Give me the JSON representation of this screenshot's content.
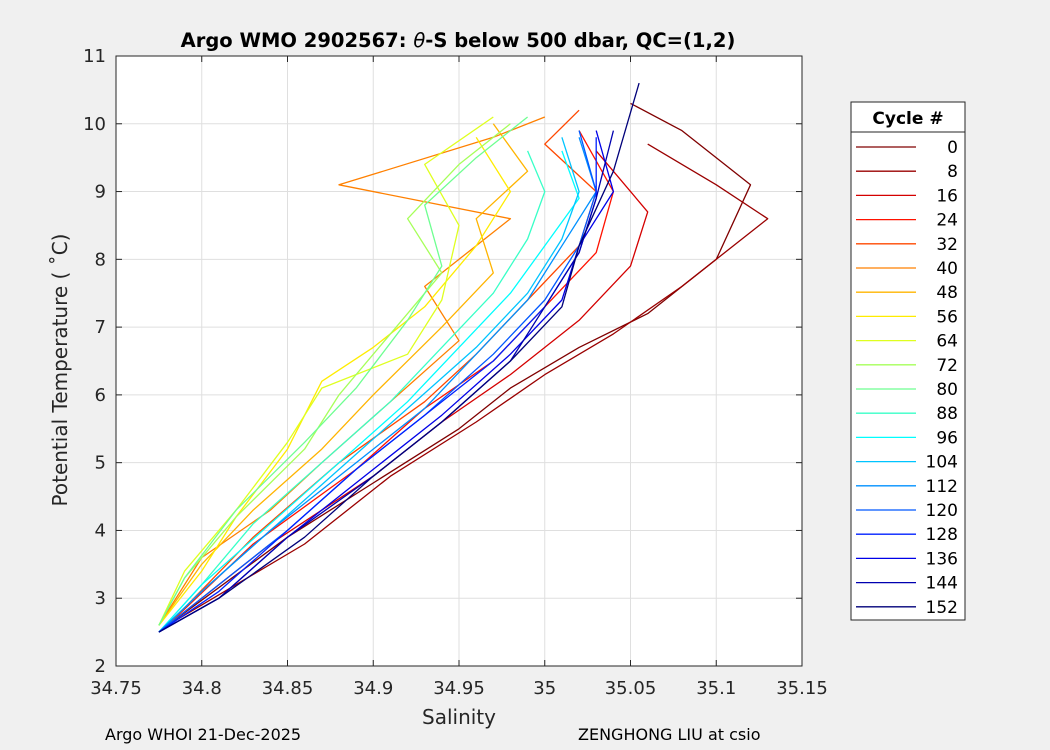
{
  "chart_data": {
    "type": "line",
    "title_prefix": "Argo WMO 2902567: ",
    "title_symbol": "θ",
    "title_suffix": "-S below 500 dbar,  QC=(1,2)",
    "xlabel": "Salinity",
    "ylabel": "Potential Temperature ( ˚C)",
    "xlim": [
      34.75,
      35.15
    ],
    "ylim": [
      2,
      11
    ],
    "xticks": [
      "34.75",
      "34.8",
      "34.85",
      "34.9",
      "34.95",
      "35",
      "35.05",
      "35.1",
      "35.15"
    ],
    "yticks": [
      "2",
      "3",
      "4",
      "5",
      "6",
      "7",
      "8",
      "9",
      "10",
      "11"
    ],
    "grid": true,
    "legend_title": "Cycle #",
    "legend_position": "right",
    "series": [
      {
        "name": "0",
        "color": "#800000"
      },
      {
        "name": "8",
        "color": "#9a0000"
      },
      {
        "name": "16",
        "color": "#d40000"
      },
      {
        "name": "24",
        "color": "#ff1200"
      },
      {
        "name": "32",
        "color": "#ff4800"
      },
      {
        "name": "40",
        "color": "#ff8000"
      },
      {
        "name": "48",
        "color": "#ffb400"
      },
      {
        "name": "56",
        "color": "#ffec00"
      },
      {
        "name": "64",
        "color": "#dfff1f"
      },
      {
        "name": "72",
        "color": "#a6ff59"
      },
      {
        "name": "80",
        "color": "#6eff91"
      },
      {
        "name": "88",
        "color": "#38ffc7"
      },
      {
        "name": "96",
        "color": "#00feff"
      },
      {
        "name": "104",
        "color": "#00c4ff"
      },
      {
        "name": "112",
        "color": "#0090ff"
      },
      {
        "name": "120",
        "color": "#0058ff"
      },
      {
        "name": "128",
        "color": "#0020ff"
      },
      {
        "name": "136",
        "color": "#0000e8"
      },
      {
        "name": "144",
        "color": "#0000b0"
      },
      {
        "name": "152",
        "color": "#00007a"
      }
    ],
    "profiles": [
      {
        "cycle": "0",
        "s": [
          34.78,
          34.85,
          34.9,
          34.95,
          34.98,
          35.02,
          35.06,
          35.1,
          35.12,
          35.08,
          35.05
        ],
        "t": [
          2.6,
          3.9,
          4.7,
          5.5,
          6.1,
          6.7,
          7.2,
          8.0,
          9.1,
          9.9,
          10.3
        ]
      },
      {
        "cycle": "8",
        "s": [
          34.78,
          34.86,
          34.91,
          34.96,
          35.0,
          35.04,
          35.08,
          35.13,
          35.1,
          35.06
        ],
        "t": [
          2.6,
          3.8,
          4.8,
          5.6,
          6.3,
          6.9,
          7.6,
          8.6,
          9.1,
          9.7
        ]
      },
      {
        "cycle": "16",
        "s": [
          34.78,
          34.84,
          34.9,
          34.94,
          34.98,
          35.02,
          35.05,
          35.06,
          35.03
        ],
        "t": [
          2.6,
          3.8,
          4.8,
          5.6,
          6.3,
          7.1,
          7.9,
          8.7,
          9.6
        ]
      },
      {
        "cycle": "24",
        "s": [
          34.78,
          34.83,
          34.89,
          34.93,
          34.97,
          35.0,
          35.03,
          35.04,
          35.02
        ],
        "t": [
          2.6,
          3.8,
          4.9,
          5.8,
          6.5,
          7.3,
          8.1,
          9.0,
          9.9
        ]
      },
      {
        "cycle": "32",
        "s": [
          34.78,
          34.83,
          34.88,
          34.93,
          34.96,
          34.99,
          35.02,
          35.03,
          35.0,
          35.02
        ],
        "t": [
          2.6,
          3.9,
          5.0,
          5.9,
          6.6,
          7.4,
          8.2,
          9.0,
          9.7,
          10.2
        ]
      },
      {
        "cycle": "40",
        "s": [
          34.775,
          34.8,
          34.84,
          34.87,
          34.91,
          34.95,
          34.93,
          34.98,
          34.88,
          34.97,
          35.0
        ],
        "t": [
          2.6,
          3.6,
          4.3,
          5.0,
          5.9,
          6.8,
          7.6,
          8.6,
          9.1,
          9.8,
          10.1
        ]
      },
      {
        "cycle": "48",
        "s": [
          34.775,
          34.8,
          34.83,
          34.87,
          34.9,
          34.94,
          34.97,
          34.96,
          34.99,
          34.97
        ],
        "t": [
          2.6,
          3.5,
          4.3,
          5.2,
          6.0,
          7.0,
          7.8,
          8.6,
          9.3,
          10.0
        ]
      },
      {
        "cycle": "56",
        "s": [
          34.775,
          34.8,
          34.82,
          34.85,
          34.87,
          34.9,
          34.93,
          34.96,
          34.98,
          34.96
        ],
        "t": [
          2.6,
          3.4,
          4.2,
          5.2,
          6.2,
          6.7,
          7.3,
          8.2,
          9.0,
          9.8
        ]
      },
      {
        "cycle": "64",
        "s": [
          34.775,
          34.79,
          34.82,
          34.85,
          34.87,
          34.92,
          34.94,
          34.95,
          34.93,
          34.97
        ],
        "t": [
          2.6,
          3.4,
          4.3,
          5.3,
          6.1,
          6.6,
          7.4,
          8.5,
          9.4,
          10.1
        ]
      },
      {
        "cycle": "72",
        "s": [
          34.775,
          34.79,
          34.82,
          34.86,
          34.88,
          34.91,
          34.94,
          34.92,
          34.95,
          34.98
        ],
        "t": [
          2.6,
          3.3,
          4.2,
          5.2,
          6.0,
          6.9,
          7.8,
          8.6,
          9.4,
          10.0
        ]
      },
      {
        "cycle": "80",
        "s": [
          34.775,
          34.79,
          34.82,
          34.86,
          34.89,
          34.92,
          34.94,
          34.93,
          34.96,
          34.99
        ],
        "t": [
          2.6,
          3.3,
          4.3,
          5.3,
          6.1,
          7.1,
          7.9,
          8.8,
          9.5,
          10.1
        ]
      },
      {
        "cycle": "88",
        "s": [
          34.775,
          34.8,
          34.83,
          34.87,
          34.91,
          34.94,
          34.97,
          34.99,
          35.0,
          34.99
        ],
        "t": [
          2.5,
          3.2,
          4.1,
          5.0,
          5.9,
          6.7,
          7.5,
          8.3,
          9.0,
          9.6
        ]
      },
      {
        "cycle": "96",
        "s": [
          34.775,
          34.8,
          34.84,
          34.88,
          34.92,
          34.95,
          34.98,
          35.0,
          35.02,
          35.01
        ],
        "t": [
          2.5,
          3.2,
          4.1,
          5.0,
          5.9,
          6.7,
          7.5,
          8.2,
          8.9,
          9.6
        ]
      },
      {
        "cycle": "104",
        "s": [
          34.775,
          34.8,
          34.84,
          34.88,
          34.92,
          34.96,
          34.99,
          35.01,
          35.02,
          35.01
        ],
        "t": [
          2.5,
          3.1,
          4.0,
          4.9,
          5.8,
          6.7,
          7.5,
          8.3,
          9.0,
          9.8
        ]
      },
      {
        "cycle": "112",
        "s": [
          34.775,
          34.8,
          34.84,
          34.89,
          34.93,
          34.96,
          34.99,
          35.01,
          35.03,
          35.02
        ],
        "t": [
          2.5,
          3.1,
          4.0,
          5.0,
          5.8,
          6.6,
          7.4,
          8.2,
          9.0,
          9.8
        ]
      },
      {
        "cycle": "120",
        "s": [
          34.775,
          34.8,
          34.85,
          34.89,
          34.93,
          34.97,
          35.0,
          35.02,
          35.03,
          35.02
        ],
        "t": [
          2.5,
          3.0,
          4.0,
          4.9,
          5.7,
          6.6,
          7.4,
          8.2,
          9.0,
          9.9
        ]
      },
      {
        "cycle": "128",
        "s": [
          34.775,
          34.81,
          34.85,
          34.89,
          34.93,
          34.97,
          35.0,
          35.02,
          35.03,
          35.03
        ],
        "t": [
          2.5,
          3.1,
          4.0,
          4.9,
          5.7,
          6.5,
          7.3,
          8.1,
          8.9,
          9.8
        ]
      },
      {
        "cycle": "136",
        "s": [
          34.775,
          34.81,
          34.85,
          34.9,
          34.94,
          34.98,
          35.01,
          35.02,
          35.04,
          35.03
        ],
        "t": [
          2.5,
          3.0,
          3.9,
          4.9,
          5.7,
          6.6,
          7.4,
          8.2,
          9.0,
          9.9
        ]
      },
      {
        "cycle": "144",
        "s": [
          34.775,
          34.81,
          34.85,
          34.9,
          34.94,
          34.98,
          35.0,
          35.02,
          35.03,
          35.04
        ],
        "t": [
          2.5,
          3.0,
          3.9,
          4.8,
          5.6,
          6.5,
          7.3,
          8.1,
          8.9,
          9.9
        ]
      },
      {
        "cycle": "152",
        "s": [
          34.775,
          34.81,
          34.86,
          34.9,
          34.94,
          34.98,
          35.01,
          35.02,
          35.04,
          35.055
        ],
        "t": [
          2.5,
          3.0,
          3.9,
          4.8,
          5.6,
          6.5,
          7.3,
          8.2,
          9.3,
          10.6
        ]
      }
    ]
  },
  "footer": {
    "left": "Argo WHOI 21-Dec-2025",
    "right": "ZENGHONG LIU at csio"
  }
}
